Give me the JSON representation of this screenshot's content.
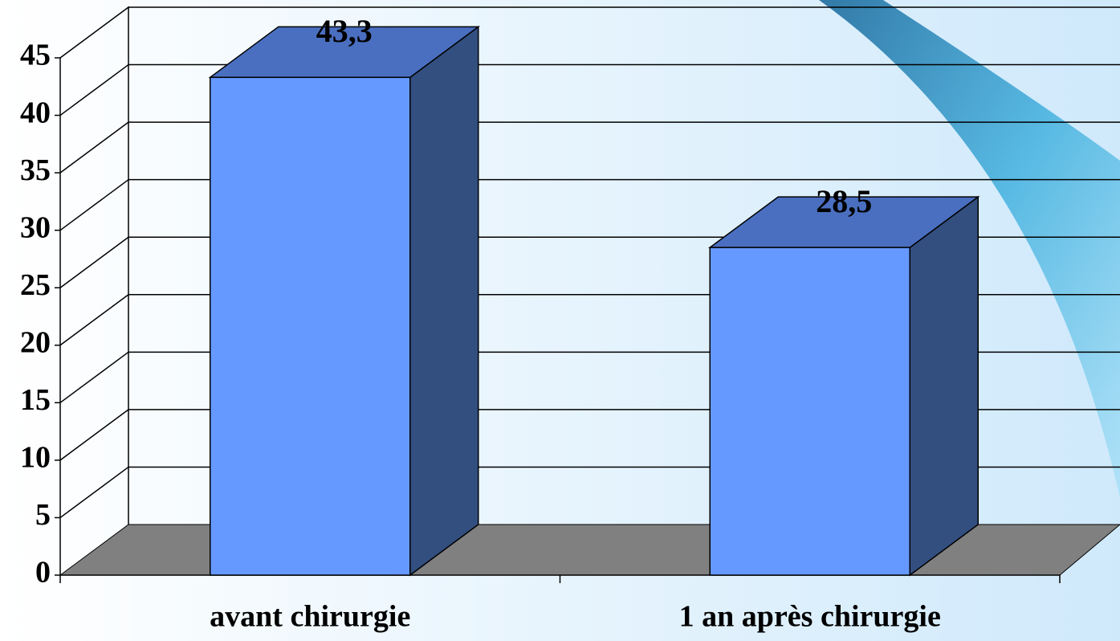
{
  "chart_data": {
    "type": "bar3d",
    "categories": [
      "avant chirurgie",
      "1 an après chirurgie"
    ],
    "values": [
      43.3,
      28.5
    ],
    "value_labels": [
      "43,3",
      "28,5"
    ],
    "color": "#6699ff",
    "side_color": "#334f80",
    "top_color": "#4a6fc0",
    "floor_color": "#808080",
    "ylim": [
      0,
      45
    ],
    "yticks": [
      0,
      5,
      10,
      15,
      20,
      25,
      30,
      35,
      40,
      45
    ],
    "grid": true
  }
}
